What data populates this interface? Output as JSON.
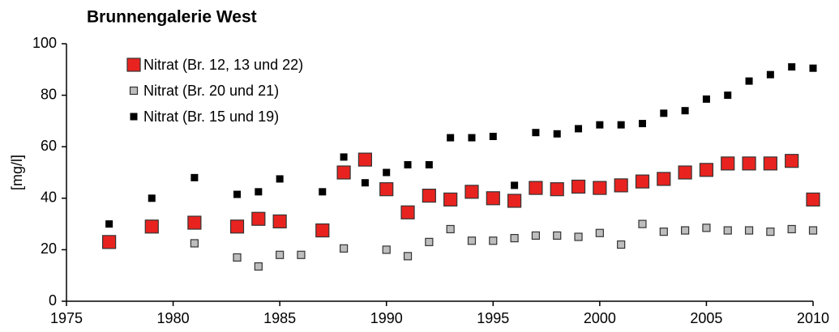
{
  "chart_data": {
    "type": "scatter",
    "title": "Brunnengalerie West",
    "y_label": "[mg/l]",
    "xlim": [
      1975,
      2010
    ],
    "xticks": [
      1975,
      1980,
      1985,
      1990,
      1995,
      2000,
      2005,
      2010
    ],
    "ylim": [
      0,
      100
    ],
    "yticks": [
      0,
      20,
      40,
      60,
      80,
      100
    ],
    "grid": false,
    "legend": "upper left",
    "series": [
      {
        "name": "Nitrat (Br. 12, 13 und 22)",
        "color": "#e8231f",
        "x": [
          1977,
          1979,
          1981,
          1983,
          1984,
          1985,
          1987,
          1988,
          1989,
          1990,
          1991,
          1992,
          1993,
          1994,
          1995,
          1996,
          1997,
          1998,
          1999,
          2000,
          2001,
          2002,
          2003,
          2004,
          2005,
          2006,
          2007,
          2008,
          2009,
          2010
        ],
        "values": [
          23,
          29,
          30.5,
          29,
          32,
          31,
          27.5,
          50,
          55,
          43.5,
          34.5,
          41,
          39.5,
          42.5,
          40,
          39,
          44,
          43.5,
          44.5,
          44,
          45,
          46.5,
          47.5,
          50,
          51,
          53.5,
          53.5,
          53.5,
          54.5,
          39.5
        ]
      },
      {
        "name": "Nitrat (Br. 20 und 21)",
        "color": "#bdbdbd",
        "x": [
          1977,
          1979,
          1981,
          1983,
          1984,
          1985,
          1986,
          1988,
          1990,
          1991,
          1992,
          1993,
          1994,
          1995,
          1996,
          1997,
          1998,
          1999,
          2000,
          2001,
          2002,
          2003,
          2004,
          2005,
          2006,
          2007,
          2008,
          2009,
          2010
        ],
        "values": [
          22,
          30,
          22.5,
          17,
          13.5,
          18,
          18,
          20.5,
          20,
          17.5,
          23,
          28,
          23.5,
          23.5,
          24.5,
          25.5,
          25.5,
          25,
          26.5,
          22,
          30,
          27,
          27.5,
          28.5,
          27.5,
          27.5,
          27,
          28,
          27.5
        ]
      },
      {
        "name": "Nitrat (Br. 15 und 19)",
        "color": "#000000",
        "x": [
          1977,
          1979,
          1981,
          1983,
          1984,
          1985,
          1987,
          1988,
          1989,
          1990,
          1991,
          1992,
          1993,
          1994,
          1995,
          1996,
          1997,
          1998,
          1999,
          2000,
          2001,
          2002,
          2003,
          2004,
          2005,
          2006,
          2007,
          2008,
          2009,
          2010
        ],
        "values": [
          30,
          40,
          48,
          41.5,
          42.5,
          47.5,
          42.5,
          56,
          46,
          50,
          53,
          53,
          63.5,
          63.5,
          64,
          45,
          65.5,
          65,
          67,
          68.5,
          68.5,
          69,
          73,
          74,
          78.5,
          80,
          85.5,
          88,
          91,
          90.5
        ]
      }
    ]
  }
}
